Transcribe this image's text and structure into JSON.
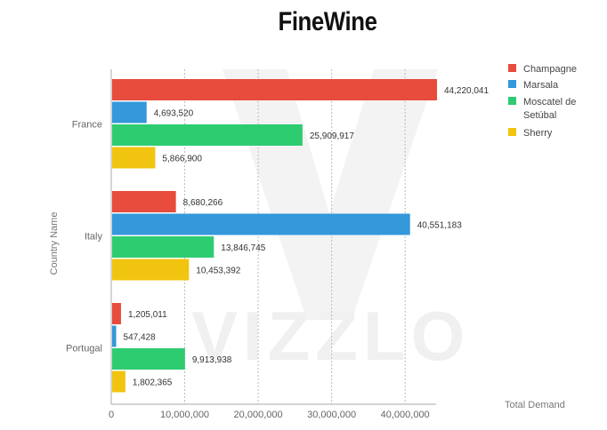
{
  "chart_data": {
    "type": "bar",
    "orientation": "horizontal",
    "title": "FineWine",
    "xlabel": "Total Demand",
    "ylabel": "Country Name",
    "categories": [
      "France",
      "Italy",
      "Portugal"
    ],
    "series": [
      {
        "name": "Champagne",
        "color": "#e74c3c",
        "values": [
          44220041,
          8680266,
          1205011
        ],
        "labels": [
          "44,220,041",
          "8,680,266",
          "1,205,011"
        ]
      },
      {
        "name": "Marsala",
        "color": "#3498db",
        "values": [
          4693520,
          40551183,
          547428
        ],
        "labels": [
          "4,693,520",
          "40,551,183",
          "547,428"
        ]
      },
      {
        "name": "Moscatel de Setúbal",
        "color": "#2ecc71",
        "values": [
          25909917,
          13846745,
          9913938
        ],
        "labels": [
          "25,909,917",
          "13,846,745",
          "9,913,938"
        ]
      },
      {
        "name": "Sherry",
        "color": "#f1c40f",
        "values": [
          5866900,
          10453392,
          1802365
        ],
        "labels": [
          "5,866,900",
          "10,453,392",
          "1,802,365"
        ]
      }
    ],
    "xlim": [
      0,
      44220041
    ],
    "xticks": [
      0,
      10000000,
      20000000,
      30000000,
      40000000
    ],
    "xtick_labels": [
      "0",
      "10,000,000",
      "20,000,000",
      "30,000,000",
      "40,000,000"
    ],
    "grid": "vertical-dashed",
    "legend_position": "top-right",
    "watermark": "VIZZLO"
  }
}
